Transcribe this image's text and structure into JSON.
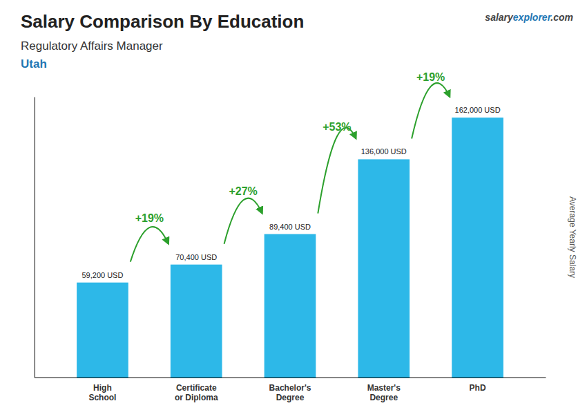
{
  "chart_data": {
    "type": "bar",
    "title": "Salary Comparison By Education",
    "subtitle": "Regulatory Affairs Manager",
    "location": "Utah",
    "watermark": [
      "salary",
      "explorer",
      ".com"
    ],
    "categories": [
      "High\nSchool",
      "Certificate\nor Diploma",
      "Bachelor's\nDegree",
      "Master's\nDegree",
      "PhD"
    ],
    "values": [
      59200,
      70400,
      89400,
      136000,
      162000
    ],
    "value_labels": [
      "59,200 USD",
      "70,400 USD",
      "89,400 USD",
      "136,000 USD",
      "162,000 USD"
    ],
    "data_labels": true,
    "color": "#2db8e8",
    "ylabel": "Average Yearly Salary",
    "ylim": [
      0,
      174960
    ],
    "tick_labels": "x",
    "grid": false,
    "annotations": [
      "+19%",
      "+27%",
      "+53%",
      "+19%"
    ]
  }
}
